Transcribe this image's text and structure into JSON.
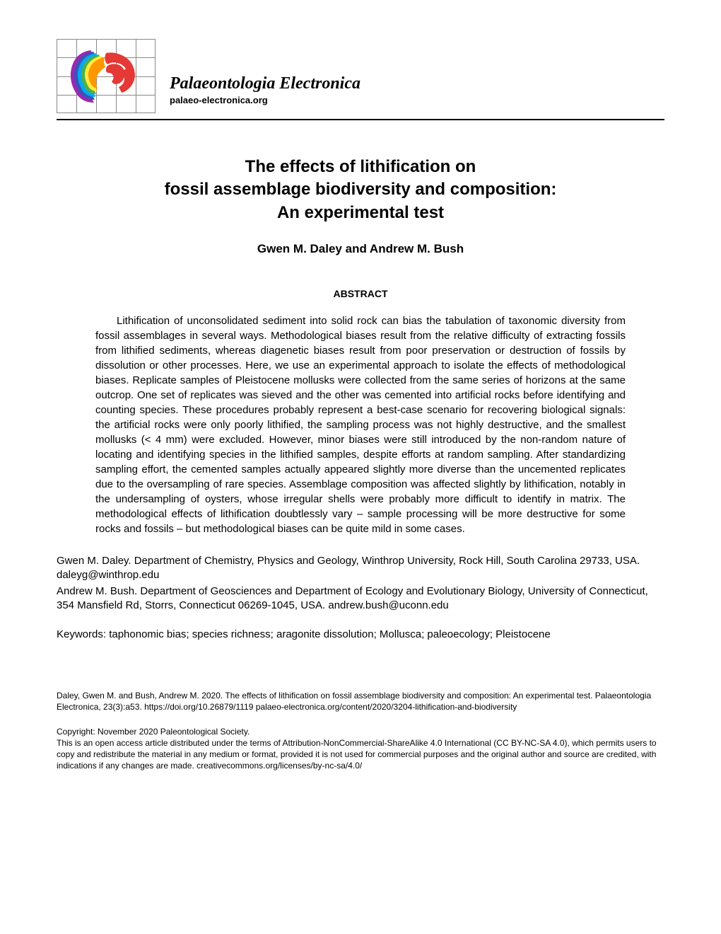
{
  "journal": {
    "title": "Palaeontologia Electronica",
    "url": "palaeo-electronica.org"
  },
  "article": {
    "title_line1": "The effects of lithification on",
    "title_line2": "fossil assemblage biodiversity and composition:",
    "title_line3": "An experimental test",
    "authors": "Gwen M. Daley and Andrew M. Bush",
    "abstract_heading": "ABSTRACT",
    "abstract_text": "Lithification of unconsolidated sediment into solid rock can bias the tabulation of taxonomic diversity from fossil assemblages in several ways. Methodological biases result from the relative difficulty of extracting fossils from lithified sediments, whereas diagenetic biases result from poor preservation or destruction of fossils by dissolution or other processes. Here, we use an experimental approach to isolate the effects of methodological biases. Replicate samples of Pleistocene mollusks were collected from the same series of horizons at the same outcrop. One set of replicates was sieved and the other was cemented into artificial rocks before identifying and counting species. These procedures probably represent a best-case scenario for recovering biological signals: the artificial rocks were only poorly lithified, the sampling process was not highly destructive, and the smallest mollusks (< 4 mm) were excluded. However, minor biases were still introduced by the non-random nature of locating and identifying species in the lithified samples, despite efforts at random sampling. After standardizing sampling effort, the cemented samples actually appeared slightly more diverse than the uncemented replicates due to the oversampling of rare species. Assemblage composition was affected slightly by lithification, notably in the undersampling of oysters, whose irregular shells were probably more difficult to identify in matrix. The methodological effects of lithification doubtlessly vary – sample processing will be more destructive for some rocks and fossils – but methodological biases can be quite mild in some cases."
  },
  "affiliations": {
    "author1": "Gwen M. Daley. Department of Chemistry, Physics and Geology, Winthrop University, Rock Hill, South Carolina 29733, USA. daleyg@winthrop.edu",
    "author2": "Andrew M. Bush. Department of Geosciences and Department of Ecology and Evolutionary Biology, University of Connecticut, 354 Mansfield Rd, Storrs, Connecticut 06269-1045, USA. andrew.bush@uconn.edu"
  },
  "keywords": "Keywords: taphonomic bias; species richness; aragonite dissolution; Mollusca; paleoecology; Pleistocene",
  "citation": "Daley, Gwen M. and Bush, Andrew M. 2020. The effects of lithification on fossil assemblage biodiversity and composition: An experimental test. Palaeontologia Electronica, 23(3):a53. https://doi.org/10.26879/1119 palaeo-electronica.org/content/2020/3204-lithification-and-biodiversity",
  "copyright": "Copyright: November 2020 Paleontological Society.\nThis is an open access article distributed under the terms of Attribution-NonCommercial-ShareAlike 4.0 International (CC BY-NC-SA 4.0), which permits users to copy and redistribute the material in any medium or format, provided it is not used for commercial purposes and the original author and source are credited, with indications if any changes are made. creativecommons.org/licenses/by-nc-sa/4.0/",
  "logo": {
    "colors": [
      "#e53935",
      "#ff9800",
      "#ffeb3b",
      "#4caf50",
      "#03a9f4",
      "#3f51b5",
      "#9c27b0"
    ],
    "grid_color": "#999999"
  }
}
